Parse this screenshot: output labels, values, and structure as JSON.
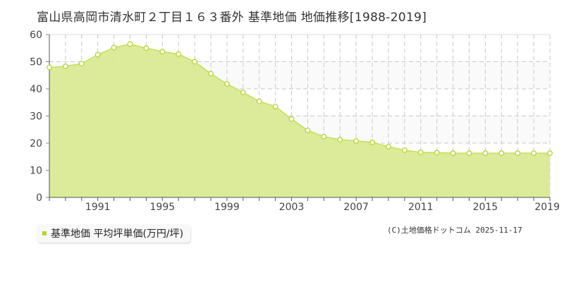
{
  "title": "富山県高岡市清水町２丁目１６３番外 基準地価 地価推移[1988-2019]",
  "legend": {
    "label": "基準地価 平均坪単価(万円/坪)",
    "color": "#b6d42f"
  },
  "copyright": "(C)土地価格ドットコム 2025-11-17",
  "colors": {
    "fill": "#d9ea93",
    "line": "#c5df5a",
    "marker_stroke": "#b6d42f",
    "marker_fill": "#ffffff",
    "grid": "#c8c8c8",
    "axis": "#555555",
    "upper_band": "#fafafa"
  },
  "chart_data": {
    "type": "area",
    "title": "富山県高岡市清水町２丁目１６３番外 基準地価 地価推移[1988-2019]",
    "xlabel": "",
    "ylabel": "",
    "ylim": [
      0,
      60
    ],
    "yticks": [
      0,
      10,
      20,
      30,
      40,
      50,
      60
    ],
    "xtick_labels": [
      "1991",
      "1995",
      "1999",
      "2003",
      "2007",
      "2011",
      "2015",
      "2019"
    ],
    "grid": true,
    "legend_position": "bottom-left",
    "x": [
      1988,
      1989,
      1990,
      1991,
      1992,
      1993,
      1994,
      1995,
      1996,
      1997,
      1998,
      1999,
      2000,
      2001,
      2002,
      2003,
      2004,
      2005,
      2006,
      2007,
      2008,
      2009,
      2010,
      2011,
      2012,
      2013,
      2014,
      2015,
      2016,
      2017,
      2018,
      2019
    ],
    "series": [
      {
        "name": "基準地価 平均坪単価(万円/坪)",
        "values": [
          47.9,
          48.3,
          49.3,
          52.6,
          55.2,
          56.5,
          55.0,
          53.7,
          52.8,
          50.0,
          45.6,
          41.8,
          38.7,
          35.4,
          33.5,
          28.9,
          24.7,
          22.4,
          21.3,
          20.8,
          20.3,
          18.7,
          17.4,
          16.6,
          16.5,
          16.3,
          16.3,
          16.3,
          16.3,
          16.3,
          16.3,
          16.3
        ]
      }
    ]
  }
}
